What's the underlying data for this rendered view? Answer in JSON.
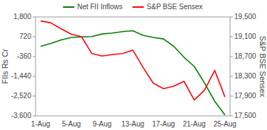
{
  "chart_data": {
    "type": "line",
    "categories": [
      "1-Aug",
      null,
      null,
      "5-Aug",
      null,
      null,
      "9-Aug",
      null,
      null,
      "13-Aug",
      null,
      null,
      "17-Aug",
      null,
      null,
      "21-Aug",
      null,
      null,
      "25-Aug"
    ],
    "series": [
      {
        "name": "Net FII Inflows",
        "color": "#008000",
        "values": [
          200,
          350,
          550,
          680,
          710,
          730,
          870,
          920,
          1000,
          1050,
          800,
          680,
          600,
          200,
          -400,
          -900,
          -1800,
          -2800,
          -3550
        ]
      },
      {
        "name": "S&P BSE Sensex",
        "color": "#ff0000",
        "axis": "y2",
        "values": [
          19420,
          19380,
          19260,
          19150,
          19100,
          18760,
          18710,
          18740,
          18760,
          18830,
          18480,
          18160,
          18050,
          18100,
          18200,
          17820,
          18020,
          18420,
          17880
        ]
      }
    ],
    "ylabel": "FIIs Rs Cr",
    "y2label": "S&P BSE Sensex",
    "ylim": [
      -3600,
      1800
    ],
    "yticks": [
      {
        "value": 1800,
        "label": "1,800"
      },
      720,
      -360,
      {
        "value": -1440,
        "label": "-1,440"
      },
      {
        "value": -2520,
        "label": "-2,520"
      },
      {
        "value": -3600,
        "label": "-3,600"
      }
    ],
    "y2lim": [
      17500,
      19500
    ],
    "y2ticks": [
      {
        "value": 19500,
        "label": "19,500"
      },
      {
        "value": 19100,
        "label": "19,100"
      },
      {
        "value": 18700,
        "label": "18,700"
      },
      {
        "value": 18300,
        "label": "18,300"
      },
      {
        "value": 17900,
        "label": "17,900"
      },
      {
        "value": 17500,
        "label": "17,500"
      }
    ],
    "legend": "top"
  }
}
